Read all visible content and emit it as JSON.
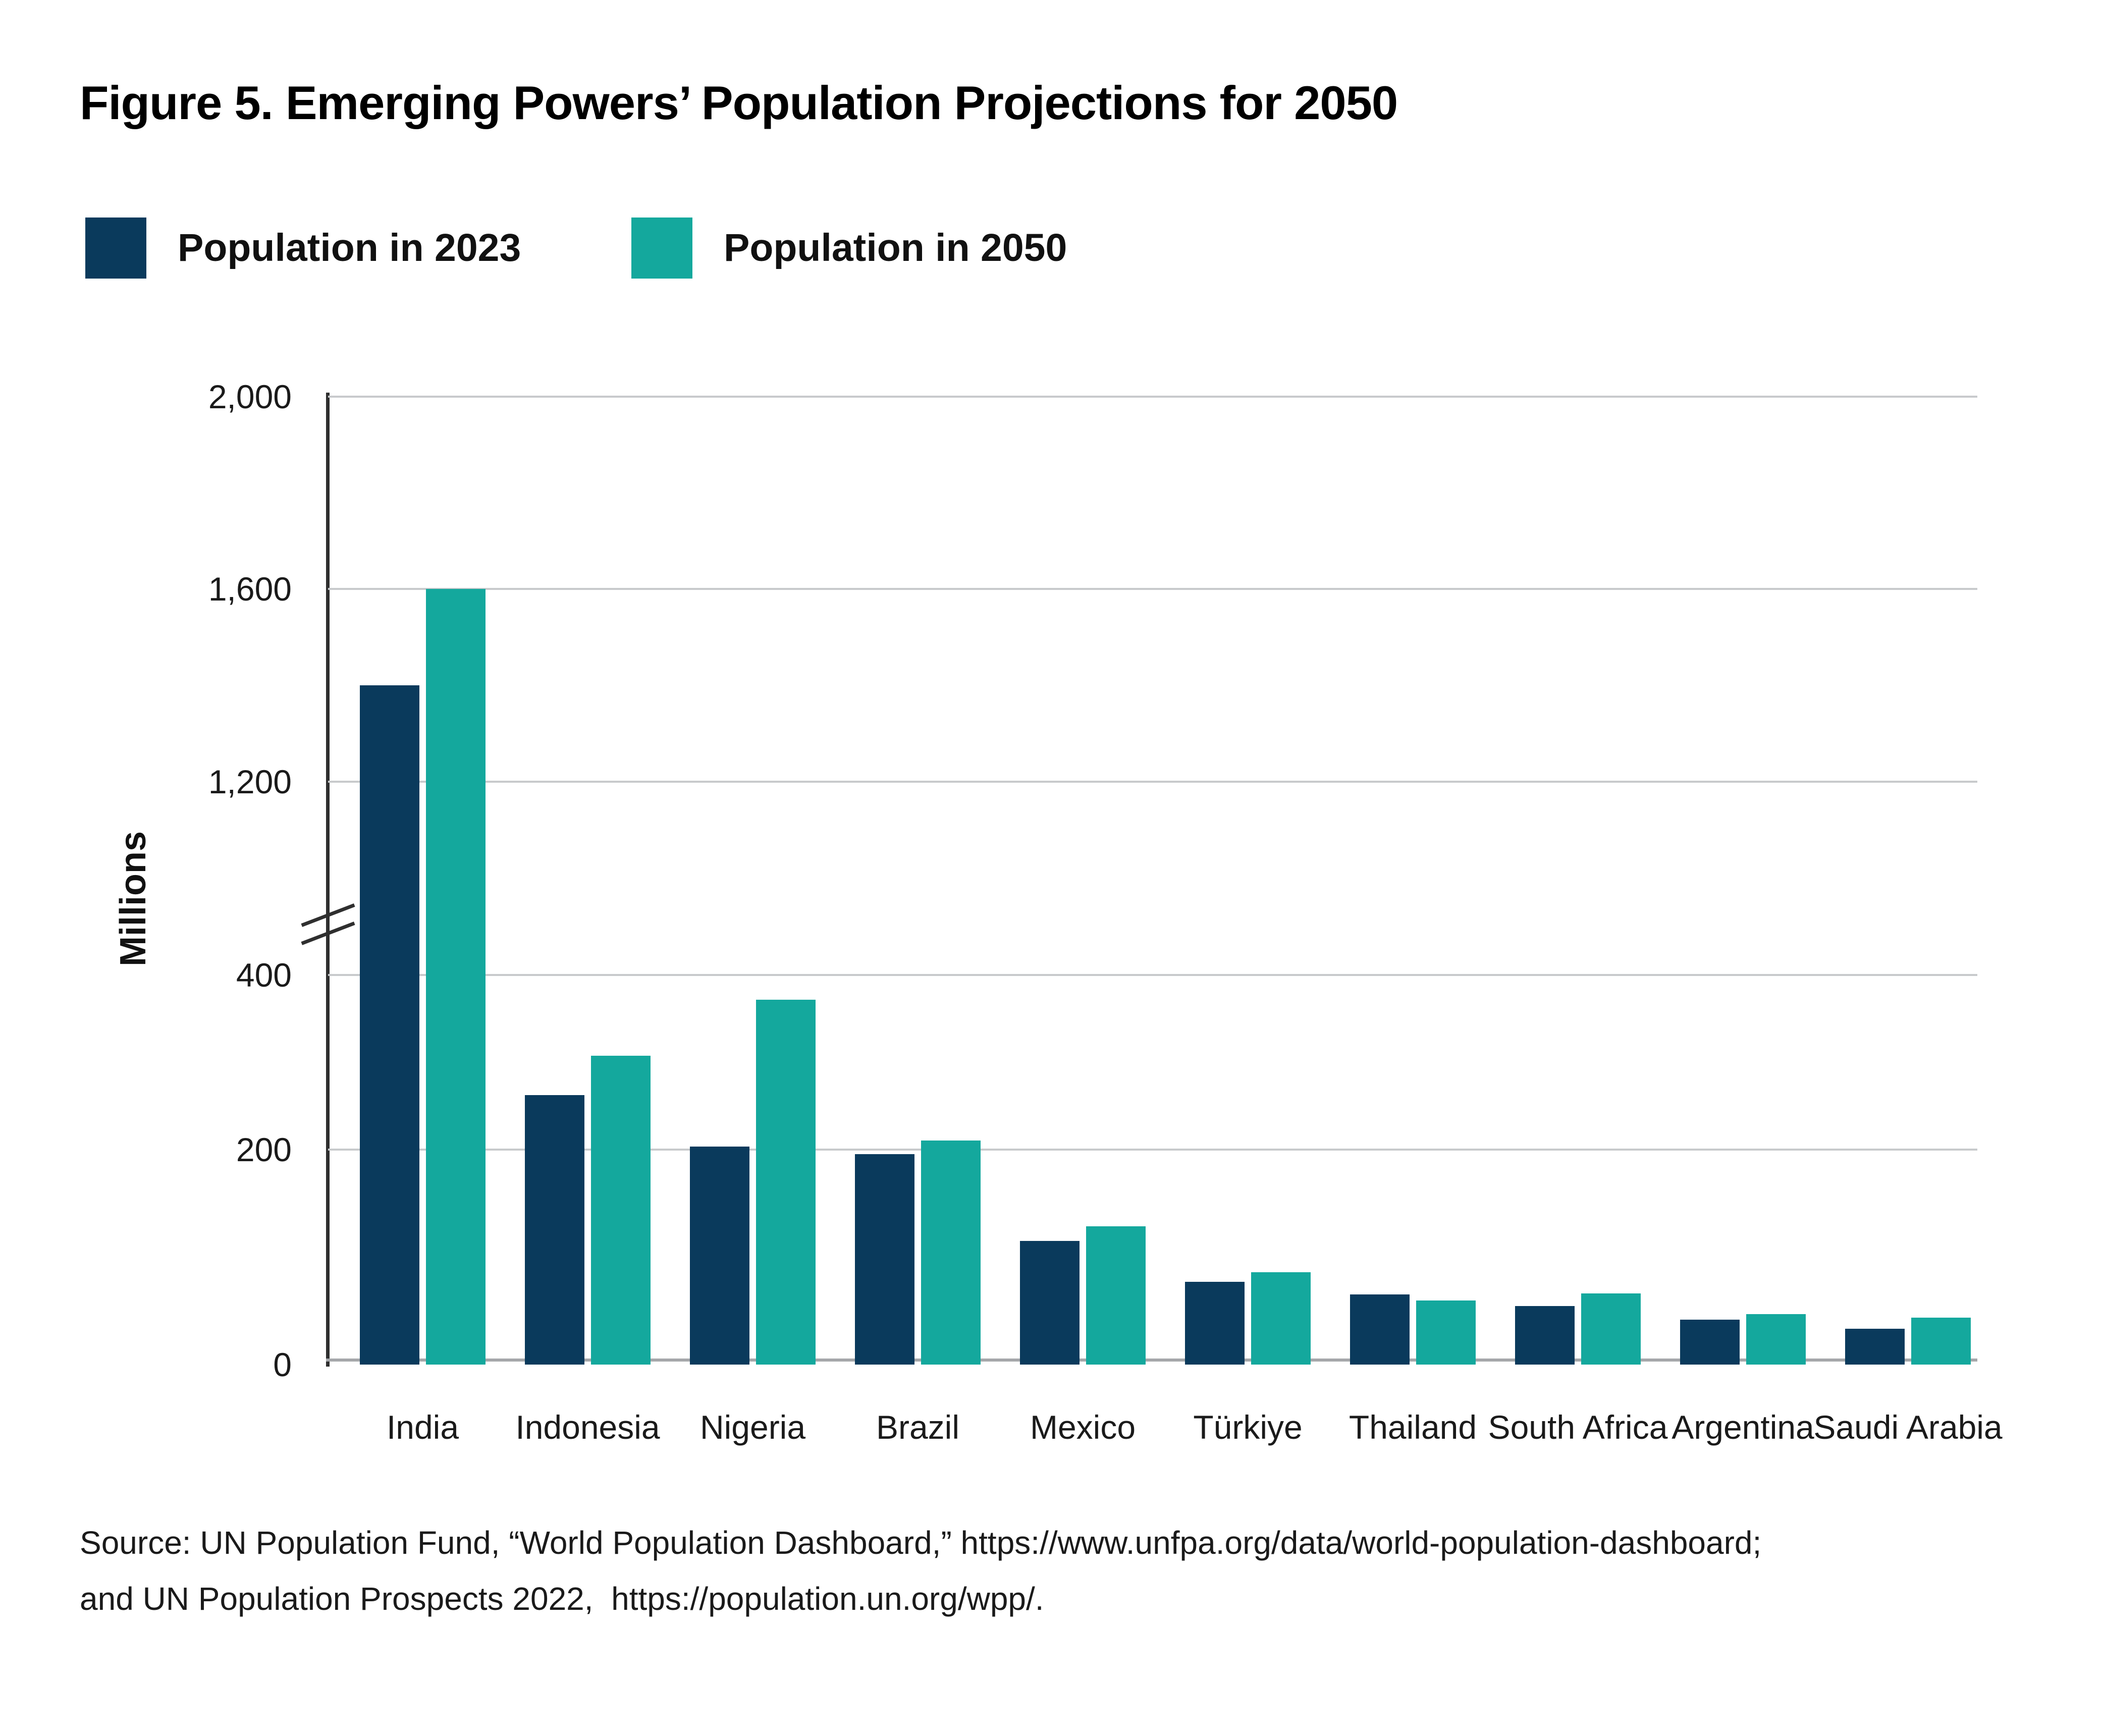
{
  "figure": {
    "title": "Figure 5. Emerging Powers’ Population Projections for 2050",
    "source": {
      "line1": "Source: UN Population Fund, “World Population Dashboard,” https://www.unfpa.org/data/world-population-dashboard;",
      "line2": "and UN Population Prospects 2022,  https://population.un.org/wpp/."
    }
  },
  "legend": {
    "items": [
      {
        "label": "Population in 2023",
        "color": "#0A3A5C"
      },
      {
        "label": "Population in 2050",
        "color": "#14A89D"
      }
    ]
  },
  "chart_data": {
    "type": "bar",
    "title": "Figure 5. Emerging Powers’ Population Projections for 2050",
    "ylabel": "Millions",
    "xlabel": "",
    "legend_position": "top-left",
    "grid": true,
    "categories": [
      "India",
      "Indonesia",
      "Nigeria",
      "Brazil",
      "Mexico",
      "Türkiye",
      "Thailand",
      "South Africa",
      "Argentina",
      "Saudi Arabia"
    ],
    "series": [
      {
        "name": "Population in 2023",
        "color": "#0A3A5C",
        "values": [
          1400,
          277,
          224,
          216,
          127,
          85,
          72,
          60,
          46,
          37
        ]
      },
      {
        "name": "Population in 2050",
        "color": "#14A89D",
        "values": [
          1600,
          317,
          375,
          230,
          142,
          95,
          66,
          73,
          52,
          48
        ]
      }
    ],
    "y_axis": {
      "range": [
        0,
        2000
      ],
      "axis_break_between": [
        400,
        1200
      ],
      "ticks": [
        {
          "value": 0,
          "label": "0"
        },
        {
          "value": 200,
          "label": "200"
        },
        {
          "value": 400,
          "label": "400"
        },
        {
          "value": 1200,
          "label": "1,200"
        },
        {
          "value": 1600,
          "label": "1,600"
        },
        {
          "value": 2000,
          "label": "2,000"
        }
      ]
    },
    "theme": {
      "background": "#FFFFFF",
      "text": "#1A1A1A",
      "grid": "#C8CACC",
      "axis_line": "#2F2F2F",
      "baseline": "#A5A7AA"
    }
  }
}
